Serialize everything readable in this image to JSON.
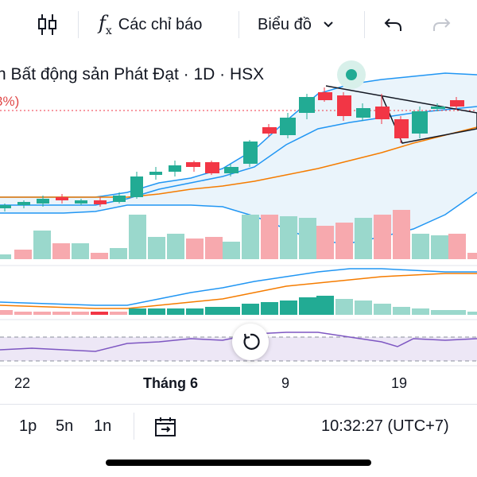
{
  "toolbar": {
    "indicators_label": "Các chỉ báo",
    "chart_type_label": "Biểu đồ",
    "fx_glyph": "f",
    "fx_sub": "x"
  },
  "legend": {
    "title": "n Bất động sản Phát Đạt · 1D · HSX",
    "pct_change": "3%)"
  },
  "axis": {
    "dates": [
      "22",
      "Tháng 6",
      "9",
      "19"
    ]
  },
  "bottom": {
    "ranges": [
      "1p",
      "5n",
      "1n"
    ],
    "clock": "10:32:27 (UTC+7)"
  },
  "colors": {
    "up": "#22ab94",
    "down": "#f23645",
    "vol_up": "#9ad8cc",
    "vol_down": "#f7a9ae",
    "bb_line": "#2196f3",
    "bb_fill": "#eaf4fb",
    "ma_orange": "#f57c00",
    "rsi_purple": "#7e57c2",
    "status": "#22ab94"
  },
  "icons": {
    "candles": "candlestick-icon",
    "fx": "fx-icon",
    "undo": "undo-icon",
    "redo": "redo-icon",
    "reset": "reset-icon",
    "goto": "goto-date-icon"
  }
}
